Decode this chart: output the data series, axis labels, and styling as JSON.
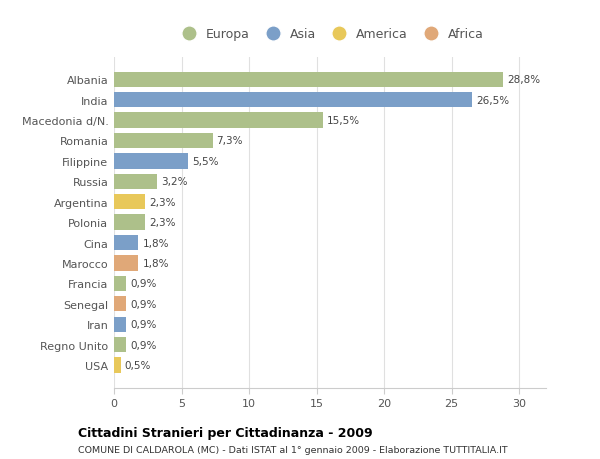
{
  "countries": [
    "Albania",
    "India",
    "Macedonia d/N.",
    "Romania",
    "Filippine",
    "Russia",
    "Argentina",
    "Polonia",
    "Cina",
    "Marocco",
    "Francia",
    "Senegal",
    "Iran",
    "Regno Unito",
    "USA"
  ],
  "values": [
    28.8,
    26.5,
    15.5,
    7.3,
    5.5,
    3.2,
    2.3,
    2.3,
    1.8,
    1.8,
    0.9,
    0.9,
    0.9,
    0.9,
    0.5
  ],
  "labels": [
    "28,8%",
    "26,5%",
    "15,5%",
    "7,3%",
    "5,5%",
    "3,2%",
    "2,3%",
    "2,3%",
    "1,8%",
    "1,8%",
    "0,9%",
    "0,9%",
    "0,9%",
    "0,9%",
    "0,5%"
  ],
  "continents": [
    "Europa",
    "Asia",
    "Europa",
    "Europa",
    "Asia",
    "Europa",
    "America",
    "Europa",
    "Asia",
    "Africa",
    "Europa",
    "Africa",
    "Asia",
    "Europa",
    "America"
  ],
  "continent_colors": {
    "Europa": "#adc08a",
    "Asia": "#7b9fc8",
    "America": "#e8c85a",
    "Africa": "#e0a878"
  },
  "legend_order": [
    "Europa",
    "Asia",
    "America",
    "Africa"
  ],
  "title": "Cittadini Stranieri per Cittadinanza - 2009",
  "subtitle": "COMUNE DI CALDAROLA (MC) - Dati ISTAT al 1° gennaio 2009 - Elaborazione TUTTITALIA.IT",
  "xlim": [
    0,
    32
  ],
  "xticks": [
    0,
    5,
    10,
    15,
    20,
    25,
    30
  ],
  "background_color": "#ffffff",
  "grid_color": "#e0e0e0",
  "bar_height": 0.75
}
